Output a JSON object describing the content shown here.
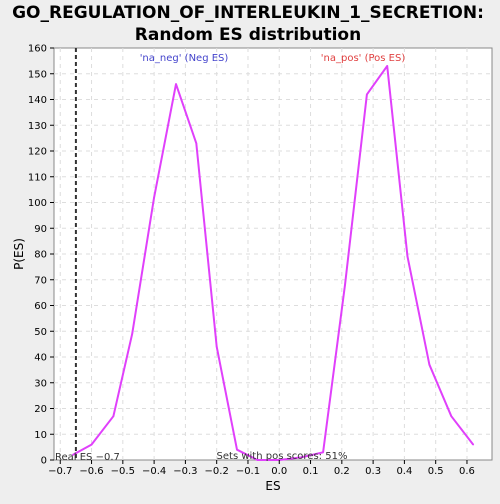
{
  "chart_data": {
    "type": "line",
    "title_lines": [
      "GO_REGULATION_OF_INTERLEUKIN_1_SECRETION:",
      "Random ES distribution"
    ],
    "xlabel": "ES",
    "ylabel": "P(ES)",
    "xlim": [
      -0.72,
      0.68
    ],
    "ylim": [
      0,
      160
    ],
    "xticks": [
      -0.7,
      -0.6,
      -0.5,
      -0.4,
      -0.3,
      -0.2,
      -0.1,
      0.0,
      0.1,
      0.2,
      0.3,
      0.4,
      0.5,
      0.6
    ],
    "xtick_labels": [
      "−0.7",
      "−0.6",
      "−0.5",
      "−0.4",
      "−0.3",
      "−0.2",
      "−0.1",
      "0.0",
      "0.1",
      "0.2",
      "0.3",
      "0.4",
      "0.5",
      "0.6"
    ],
    "yticks": [
      0,
      10,
      20,
      30,
      40,
      50,
      60,
      70,
      80,
      90,
      100,
      110,
      120,
      130,
      140,
      150,
      160
    ],
    "grid": true,
    "series": [
      {
        "color": "#e040fb",
        "x": [
          -0.66,
          -0.6,
          -0.53,
          -0.47,
          -0.4,
          -0.33,
          -0.265,
          -0.2,
          -0.135,
          -0.07,
          0.0,
          0.07,
          0.14,
          0.21,
          0.28,
          0.345,
          0.41,
          0.48,
          0.55,
          0.62
        ],
        "y": [
          2,
          6,
          17,
          49,
          102,
          146,
          123,
          44,
          4,
          0,
          0,
          1,
          3,
          68,
          142,
          153,
          79,
          37,
          17,
          6
        ]
      }
    ],
    "reference_line": {
      "x": -0.65,
      "color": "#333333"
    },
    "annotations": {
      "neg_label": "'na_neg' (Neg ES)",
      "pos_label": "'na_pos' (Pos ES)",
      "real_es_label": "Real ES −0.7",
      "pos_scores_label": "Sets with pos scores: 51%"
    },
    "colors": {
      "neg_label": "#4444cc",
      "pos_label": "#e04040",
      "line": "#e040fb"
    }
  }
}
